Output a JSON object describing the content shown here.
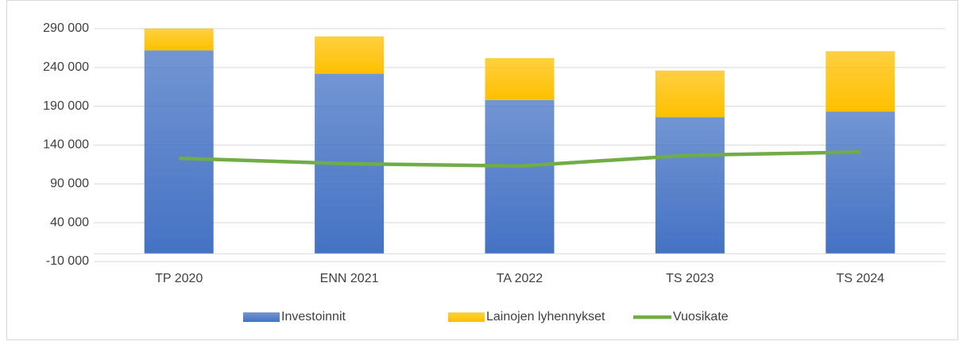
{
  "chart_data": {
    "type": "bar",
    "stacked": true,
    "categories": [
      "TP 2020",
      "ENN 2021",
      "TA 2022",
      "TS 2023",
      "TS 2024"
    ],
    "series": [
      {
        "name": "Investoinnit",
        "type": "bar",
        "color": "#4472c4",
        "values": [
          262000,
          232000,
          198000,
          176000,
          183000
        ]
      },
      {
        "name": "Lainojen lyhennykset",
        "type": "bar",
        "color": "#ffc000",
        "values": [
          28000,
          48000,
          54000,
          60000,
          78000
        ]
      },
      {
        "name": "Vuosikate",
        "type": "line",
        "color": "#70ad47",
        "values": [
          123000,
          116000,
          113000,
          127000,
          131000
        ]
      }
    ],
    "ylim": [
      -10000,
      290000
    ],
    "yticks": [
      {
        "value": -10000,
        "label": "-10 000"
      },
      {
        "value": 40000,
        "label": "40 000"
      },
      {
        "value": 90000,
        "label": "90 000"
      },
      {
        "value": 140000,
        "label": "140 000"
      },
      {
        "value": 190000,
        "label": "190 000"
      },
      {
        "value": 240000,
        "label": "240 000"
      },
      {
        "value": 290000,
        "label": "290 000"
      }
    ],
    "grid": true,
    "legend": "bottom"
  }
}
